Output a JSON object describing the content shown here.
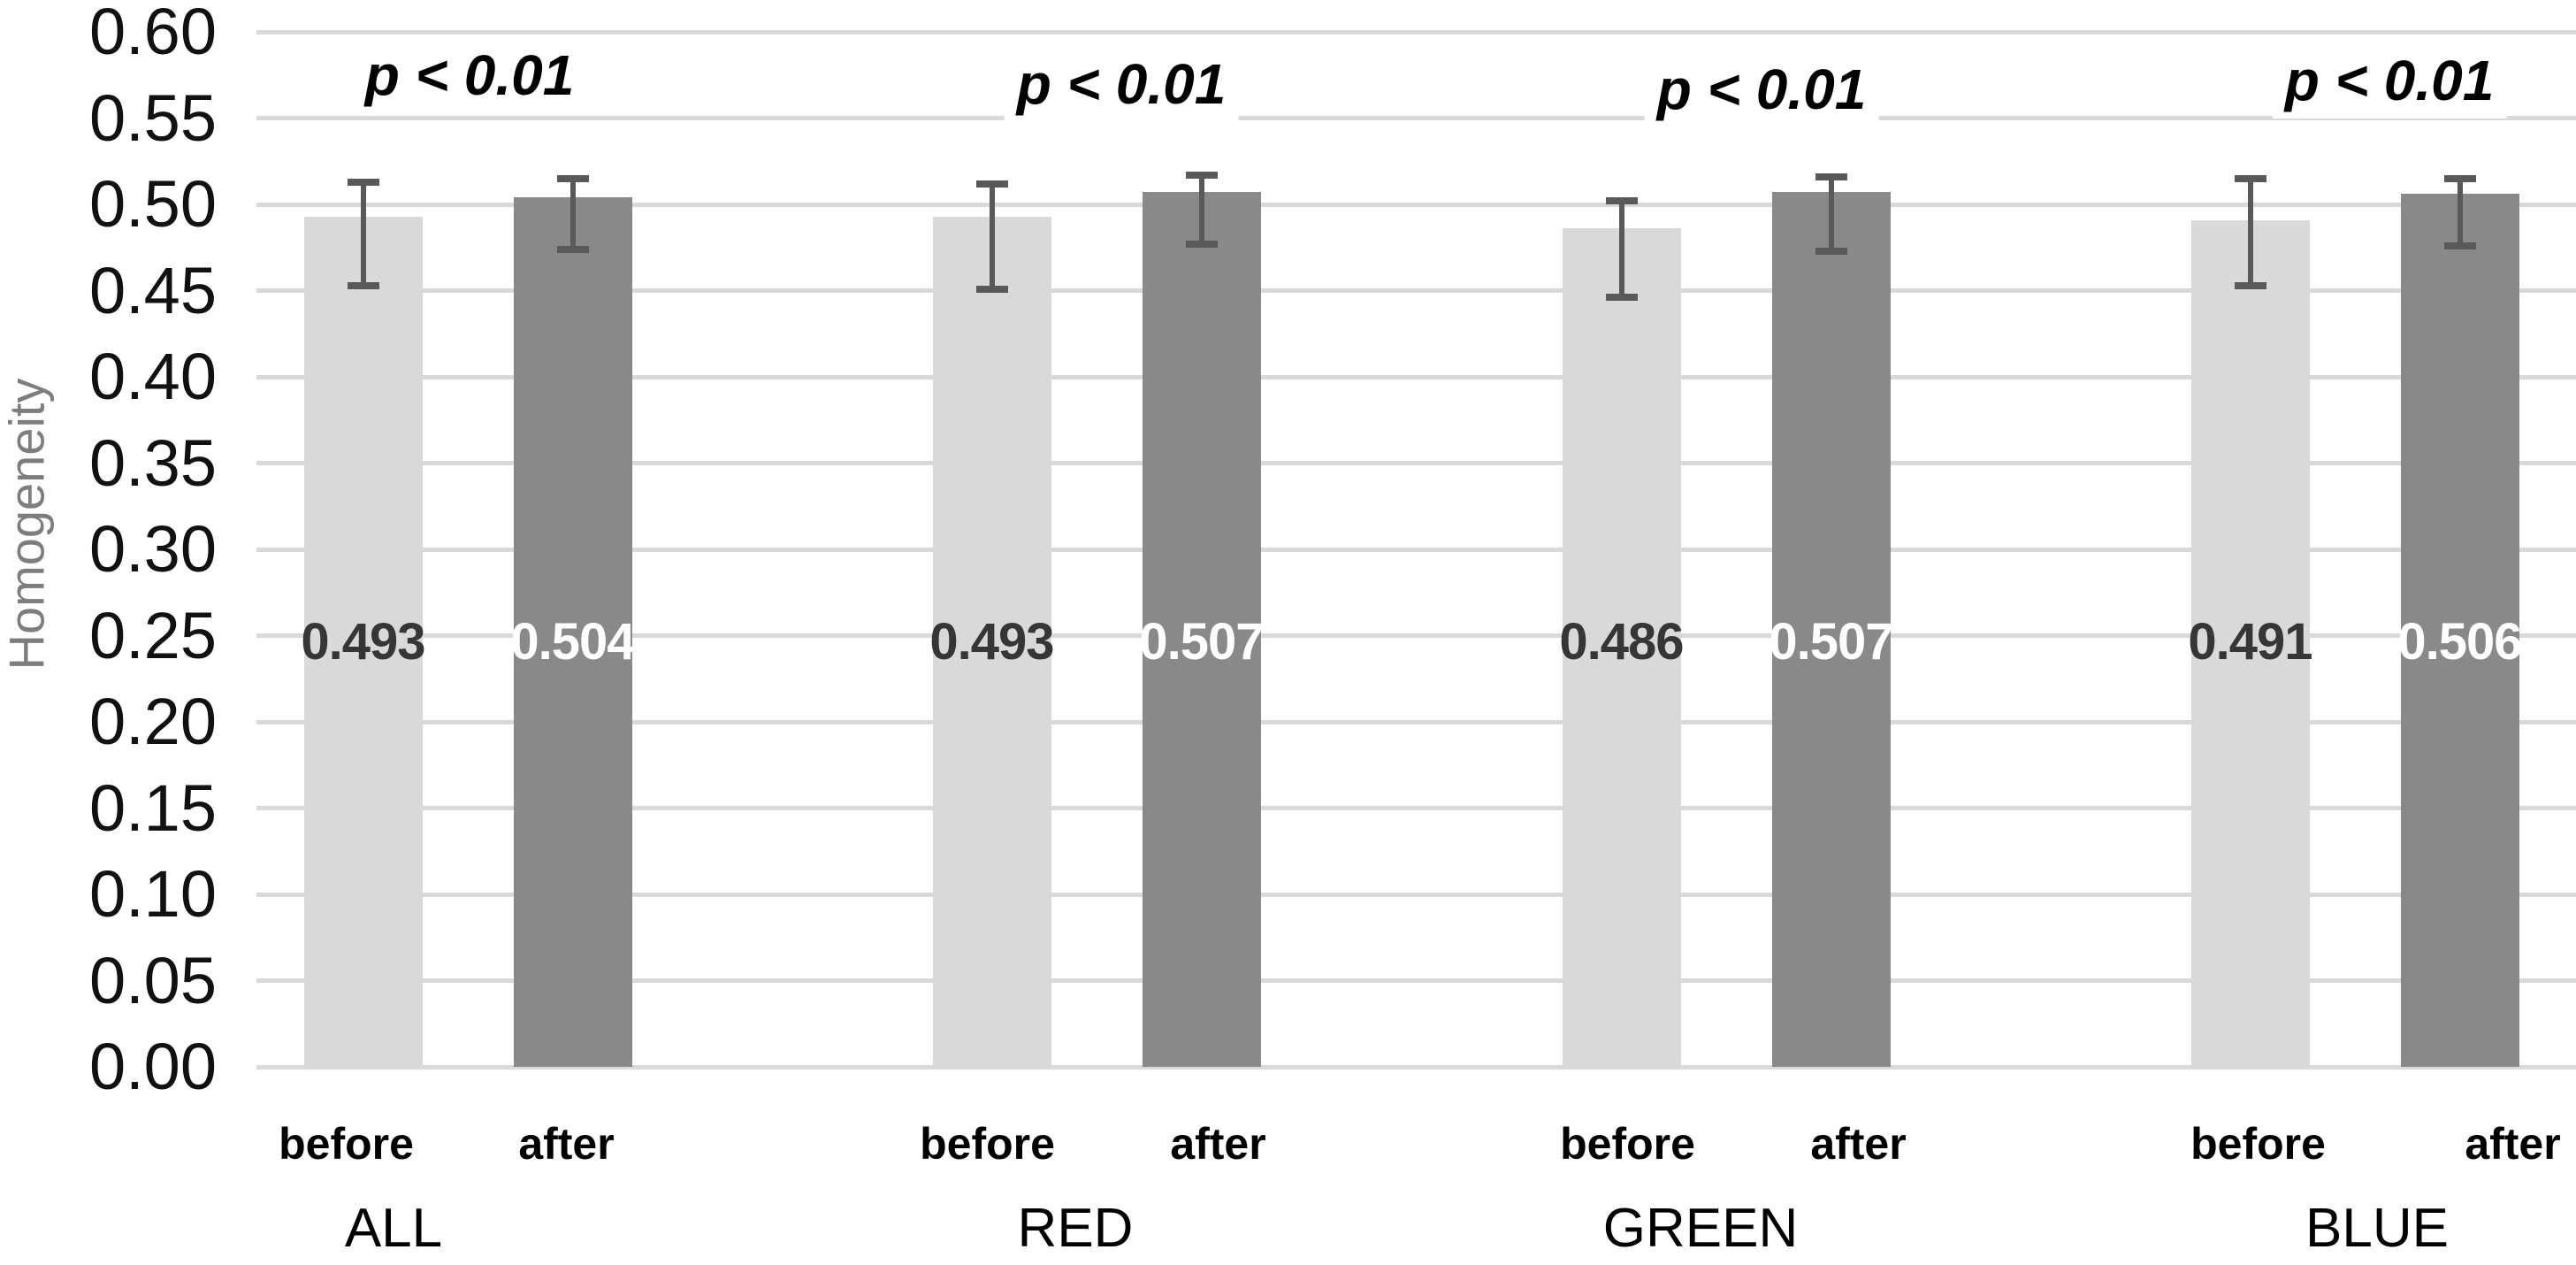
{
  "chart_data": {
    "type": "bar",
    "title": "",
    "xlabel": "",
    "ylabel": "Homogeneity",
    "ylim": [
      0.0,
      0.6
    ],
    "ytick_step": 0.05,
    "ytick_labels": [
      "0.60",
      "0.55",
      "0.50",
      "0.45",
      "0.40",
      "0.35",
      "0.30",
      "0.25",
      "0.20",
      "0.15",
      "0.10",
      "0.05",
      "0.00"
    ],
    "grid": true,
    "legend": "none",
    "categories": [
      "ALL",
      "RED",
      "GREEN",
      "BLUE"
    ],
    "series_labels": [
      "before",
      "after"
    ],
    "series": [
      {
        "name": "before",
        "values": [
          0.493,
          0.493,
          0.486,
          0.491
        ]
      },
      {
        "name": "after",
        "values": [
          0.504,
          0.507,
          0.507,
          0.506
        ]
      }
    ],
    "groups": [
      {
        "label": "ALL",
        "annotation": "p < 0.01",
        "bars": [
          {
            "series": "before",
            "value": 0.493,
            "value_label": "0.493",
            "err_low": 0.453,
            "err_high": 0.513
          },
          {
            "series": "after",
            "value": 0.504,
            "value_label": "0.504",
            "err_low": 0.474,
            "err_high": 0.515
          }
        ]
      },
      {
        "label": "RED",
        "annotation": "p < 0.01",
        "bars": [
          {
            "series": "before",
            "value": 0.493,
            "value_label": "0.493",
            "err_low": 0.451,
            "err_high": 0.512
          },
          {
            "series": "after",
            "value": 0.507,
            "value_label": "0.507",
            "err_low": 0.477,
            "err_high": 0.517
          }
        ]
      },
      {
        "label": "GREEN",
        "annotation": "p < 0.01",
        "bars": [
          {
            "series": "before",
            "value": 0.486,
            "value_label": "0.486",
            "err_low": 0.446,
            "err_high": 0.502
          },
          {
            "series": "after",
            "value": 0.507,
            "value_label": "0.507",
            "err_low": 0.473,
            "err_high": 0.516
          }
        ]
      },
      {
        "label": "BLUE",
        "annotation": "p < 0.01",
        "bars": [
          {
            "series": "before",
            "value": 0.491,
            "value_label": "0.491",
            "err_low": 0.453,
            "err_high": 0.515
          },
          {
            "series": "after",
            "value": 0.506,
            "value_label": "0.506",
            "err_low": 0.476,
            "err_high": 0.515
          }
        ]
      }
    ],
    "colors": {
      "before_bar": "#d9d9d9",
      "after_bar": "#898989",
      "error_bar": "#595959",
      "gridline": "#d9d9d9",
      "axis_line": "#d4d4d4",
      "value_text_on_light": "#363636",
      "value_text_on_dark": "#ffffff",
      "tick_text": "#111111",
      "ylabel_text": "#7d7d7d"
    }
  }
}
